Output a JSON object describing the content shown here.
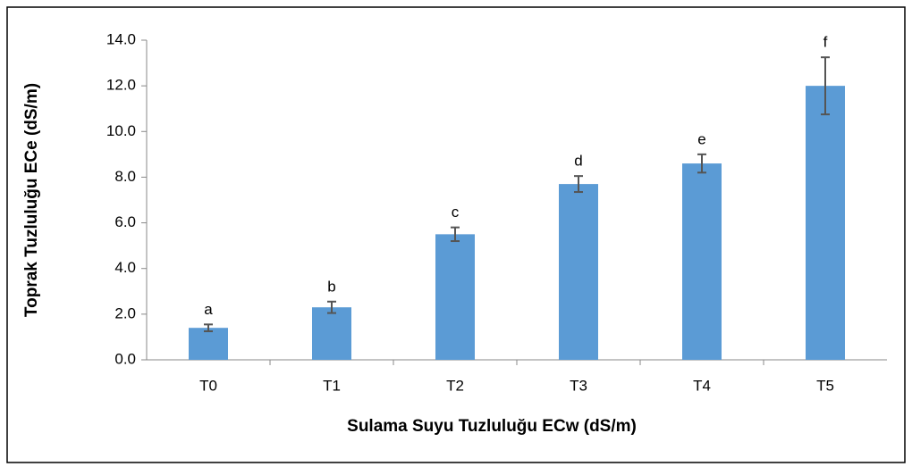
{
  "chart_data": {
    "type": "bar",
    "xlabel": "Sulama Suyu Tuzluluğu ECw (dS/m)",
    "ylabel": "Toprak Tuzluluğu ECe (dS/m)",
    "categories": [
      "T0",
      "T1",
      "T2",
      "T3",
      "T4",
      "T5"
    ],
    "values": [
      1.4,
      2.3,
      5.5,
      7.7,
      8.6,
      12.0
    ],
    "errors": [
      0.15,
      0.25,
      0.3,
      0.35,
      0.4,
      1.25
    ],
    "annotations": [
      "a",
      "b",
      "c",
      "d",
      "e",
      "f"
    ],
    "color": "#5b9bd5",
    "ylim": [
      0,
      14
    ],
    "yticks": [
      {
        "value": 0,
        "label": "0.0"
      },
      {
        "value": 2,
        "label": "2.0"
      },
      {
        "value": 4,
        "label": "4.0"
      },
      {
        "value": 6,
        "label": "6.0"
      },
      {
        "value": 8,
        "label": "8.0"
      },
      {
        "value": 10,
        "label": "10.0"
      },
      {
        "value": 12,
        "label": "12.0"
      },
      {
        "value": 14,
        "label": "14.0"
      }
    ]
  }
}
